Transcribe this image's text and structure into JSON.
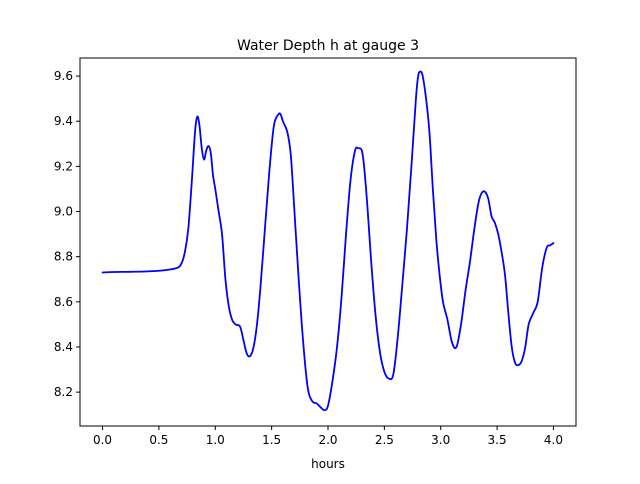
{
  "chart_data": {
    "type": "line",
    "title": "Water Depth h at gauge 3",
    "xlabel": "hours",
    "ylabel": "",
    "xlim": [
      -0.2,
      4.2
    ],
    "ylim": [
      8.05,
      9.68
    ],
    "grid": false,
    "xticks": [
      0.0,
      0.5,
      1.0,
      1.5,
      2.0,
      2.5,
      3.0,
      3.5,
      4.0
    ],
    "xtick_labels": [
      "0.0",
      "0.5",
      "1.0",
      "1.5",
      "2.0",
      "2.5",
      "3.0",
      "3.5",
      "4.0"
    ],
    "yticks": [
      8.2,
      8.4,
      8.6,
      8.8,
      9.0,
      9.2,
      9.4,
      9.6
    ],
    "ytick_labels": [
      "8.2",
      "8.4",
      "8.6",
      "8.8",
      "9.0",
      "9.2",
      "9.4",
      "9.6"
    ],
    "series": [
      {
        "color": "#0000ff",
        "x": [
          0.0,
          0.1,
          0.25,
          0.4,
          0.55,
          0.66,
          0.7,
          0.73,
          0.76,
          0.79,
          0.82,
          0.84,
          0.86,
          0.88,
          0.9,
          0.92,
          0.94,
          0.96,
          0.98,
          1.0,
          1.03,
          1.06,
          1.09,
          1.12,
          1.15,
          1.18,
          1.22,
          1.25,
          1.28,
          1.31,
          1.34,
          1.37,
          1.4,
          1.44,
          1.48,
          1.52,
          1.56,
          1.58,
          1.6,
          1.64,
          1.67,
          1.7,
          1.74,
          1.78,
          1.82,
          1.86,
          1.9,
          1.94,
          1.97,
          2.0,
          2.04,
          2.08,
          2.12,
          2.16,
          2.2,
          2.24,
          2.27,
          2.3,
          2.32,
          2.35,
          2.38,
          2.42,
          2.46,
          2.5,
          2.54,
          2.58,
          2.62,
          2.66,
          2.7,
          2.74,
          2.78,
          2.8,
          2.82,
          2.84,
          2.87,
          2.9,
          2.93,
          2.96,
          2.99,
          3.02,
          3.06,
          3.1,
          3.14,
          3.18,
          3.22,
          3.26,
          3.3,
          3.34,
          3.38,
          3.42,
          3.45,
          3.48,
          3.51,
          3.54,
          3.57,
          3.6,
          3.63,
          3.66,
          3.69,
          3.72,
          3.75,
          3.78,
          3.82,
          3.86,
          3.9,
          3.94,
          3.97,
          4.0
        ],
        "y": [
          8.73,
          8.732,
          8.733,
          8.735,
          8.74,
          8.75,
          8.77,
          8.82,
          8.92,
          9.12,
          9.35,
          9.42,
          9.38,
          9.28,
          9.23,
          9.27,
          9.29,
          9.26,
          9.16,
          9.1,
          9.0,
          8.9,
          8.7,
          8.58,
          8.52,
          8.5,
          8.49,
          8.43,
          8.37,
          8.36,
          8.4,
          8.5,
          8.66,
          8.92,
          9.18,
          9.38,
          9.43,
          9.43,
          9.4,
          9.35,
          9.25,
          9.02,
          8.7,
          8.42,
          8.22,
          8.16,
          8.15,
          8.13,
          8.12,
          8.14,
          8.25,
          8.4,
          8.62,
          8.9,
          9.14,
          9.27,
          9.28,
          9.27,
          9.2,
          9.02,
          8.8,
          8.55,
          8.38,
          8.29,
          8.26,
          8.28,
          8.45,
          8.68,
          8.92,
          9.2,
          9.5,
          9.6,
          9.62,
          9.6,
          9.5,
          9.35,
          9.1,
          8.88,
          8.72,
          8.6,
          8.52,
          8.42,
          8.4,
          8.5,
          8.65,
          8.78,
          8.93,
          9.05,
          9.09,
          9.06,
          8.98,
          8.95,
          8.9,
          8.82,
          8.72,
          8.55,
          8.4,
          8.33,
          8.32,
          8.34,
          8.4,
          8.5,
          8.55,
          8.6,
          8.75,
          8.84,
          8.85,
          8.86
        ]
      }
    ]
  }
}
